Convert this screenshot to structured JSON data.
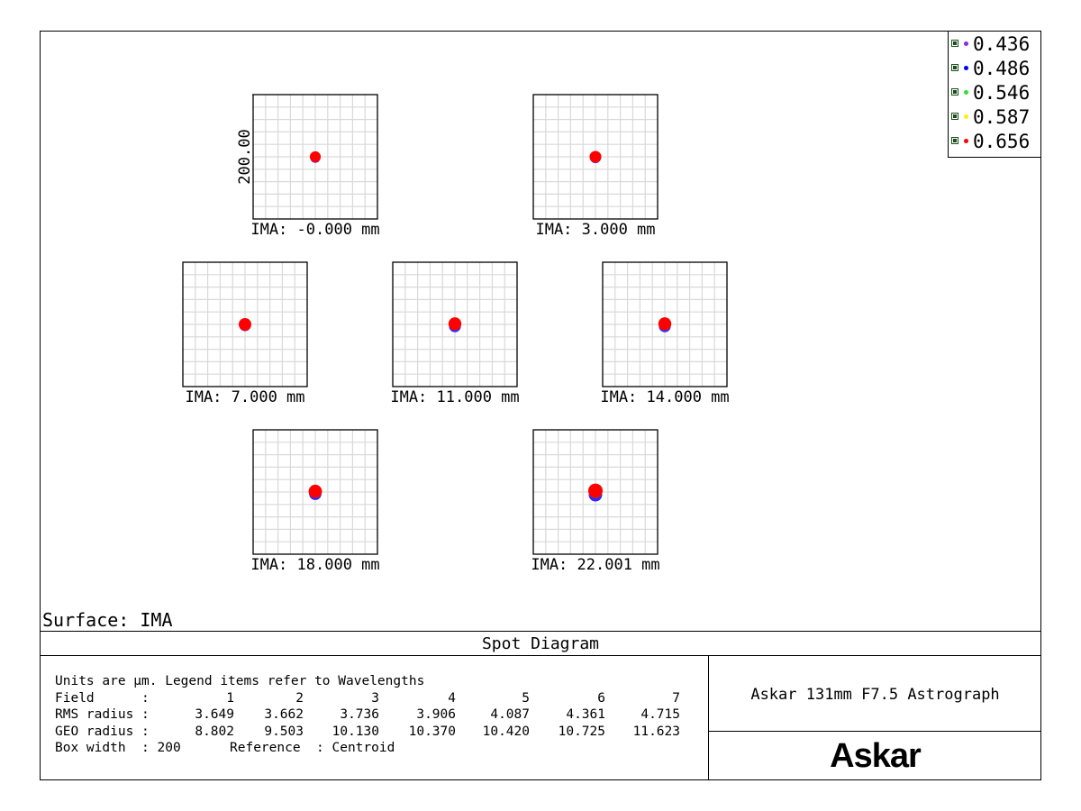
{
  "chart_data": {
    "type": "scatter",
    "title": "Spot Diagram",
    "surface_label": "Surface: IMA",
    "y_scale_label": "200.00",
    "box_width_um": 200,
    "grid_divisions": 10,
    "legend": [
      {
        "label": "0.436",
        "color": "#8a2be2"
      },
      {
        "label": "0.486",
        "color": "#0000ff"
      },
      {
        "label": "0.546",
        "color": "#33dd33"
      },
      {
        "label": "0.587",
        "color": "#ffee00"
      },
      {
        "label": "0.656",
        "color": "#ff0000"
      }
    ],
    "fields": [
      {
        "label": "IMA: -0.000 mm",
        "field": 1,
        "rms_um": 3.649,
        "geo_um": 8.802
      },
      {
        "label": "IMA: 3.000 mm",
        "field": 2,
        "rms_um": 3.662,
        "geo_um": 9.503
      },
      {
        "label": "IMA: 7.000 mm",
        "field": 3,
        "rms_um": 3.736,
        "geo_um": 10.13
      },
      {
        "label": "IMA: 11.000 mm",
        "field": 4,
        "rms_um": 3.906,
        "geo_um": 10.37
      },
      {
        "label": "IMA: 14.000 mm",
        "field": 5,
        "rms_um": 4.087,
        "geo_um": 10.42
      },
      {
        "label": "IMA: 18.000 mm",
        "field": 6,
        "rms_um": 4.361,
        "geo_um": 10.725
      },
      {
        "label": "IMA: 22.001 mm",
        "field": 7,
        "rms_um": 4.715,
        "geo_um": 11.623
      }
    ]
  },
  "info": {
    "line1": "Units are µm. Legend items refer to Wavelengths",
    "field_label": "Field      :",
    "fields": [
      "1",
      "2",
      "3",
      "4",
      "5",
      "6",
      "7"
    ],
    "rms_label": "RMS radius :",
    "rms": [
      "3.649",
      "3.662",
      "3.736",
      "3.906",
      "4.087",
      "4.361",
      "4.715"
    ],
    "geo_label": "GEO radius :",
    "geo": [
      "8.802",
      "9.503",
      "10.130",
      "10.370",
      "10.420",
      "10.725",
      "11.623"
    ],
    "box_width": "Box width  : 200",
    "reference": "Reference  : Centroid"
  },
  "system_title": "Askar 131mm F7.5 Astrograph",
  "logo_text": "Askar"
}
